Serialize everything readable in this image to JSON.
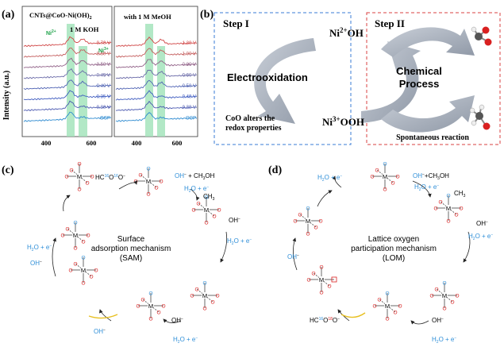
{
  "panel_a": {
    "label": "(a)",
    "left_title": "CNTs@CoO-Ni(OH)",
    "left_title_sub": "2",
    "left_condition": "1 M KOH",
    "right_condition": "with 1 M MeOH",
    "ni2_label": "Ni",
    "ni2_sup": "2+",
    "ni3_label": "Ni",
    "ni3_sup": "3+",
    "ylabel": "Intensity (a.u.)",
    "left_ticks": [
      "400",
      "600"
    ],
    "right_ticks": [
      "400",
      "600"
    ],
    "left_potentials": [
      "0.70 V",
      "0.60 V",
      "0.50 V",
      "0.45 V",
      "0.40 V",
      "0.35 V",
      "0.30 V",
      "OCP"
    ],
    "right_potentials": [
      "1.20 V",
      "1.00 V",
      "0.80 V",
      "0.60 V",
      "0.50 V",
      "0.40 V",
      "0.30 V",
      "OCP"
    ],
    "colors": [
      "#d04545",
      "#c35a5a",
      "#8f5f86",
      "#6a6aa8",
      "#5064b4",
      "#3f5cc0",
      "#4a58b0",
      "#2d8ad0"
    ]
  },
  "panel_b": {
    "label": "(b)",
    "step1": "Step I",
    "step2": "Step II",
    "ni2oh": "Ni",
    "ni2oh_sup": "2+",
    "ni2oh_tail": "OH",
    "ni3ooh": "Ni",
    "ni3ooh_sup": "3+",
    "ni3ooh_tail": "OOH",
    "electro": "Electrooxidation",
    "coo_line1": "CoO alters the",
    "coo_line2": "redox properties",
    "chem_line1": "Chemical",
    "chem_line2": "Process",
    "spontaneous": "Spontaneous reaction"
  },
  "panel_c": {
    "label": "(c)",
    "center_line1": "Surface",
    "center_line2": "adsorption mechanism",
    "center_line3": "(SAM)",
    "hcoo": "HC",
    "hcoo_iso1": "16",
    "hcoo_o": "O",
    "hcoo_iso2": "16",
    "hcoo_tail": "O",
    "hcoo_charge": "−",
    "oh_ch3oh": "OH",
    "oh_ch3oh_tail": " + CH",
    "ch3oh_sub": "3",
    "ch3oh_end": "OH",
    "water_e": "H",
    "water_sub": "2",
    "water_tail": "O + e",
    "oh": "OH",
    "ch3": "CH",
    "ch3_sub": "3"
  },
  "panel_d": {
    "label": "(d)",
    "center_line1": "Lattice oxygen",
    "center_line2": "participation mechanism",
    "center_line3": "(LOM)",
    "hcoo": "HC",
    "hcoo_iso1": "16",
    "hcoo_o": "O",
    "hcoo_iso2": "18",
    "hcoo_tail": "O",
    "hcoo_charge": "−",
    "oh_ch3oh": "OH",
    "oh_ch3oh_tail": "+CH",
    "ch3oh_sub": "3",
    "ch3oh_end": "OH",
    "water_e": "H",
    "water_sub": "2",
    "water_tail": "O + e",
    "oh": "OH",
    "ch3": "CH",
    "ch3_sub": "3"
  },
  "atoms": {
    "metal": "M",
    "oxygen": "O",
    "carbon": "C",
    "hydrogen": "H"
  }
}
